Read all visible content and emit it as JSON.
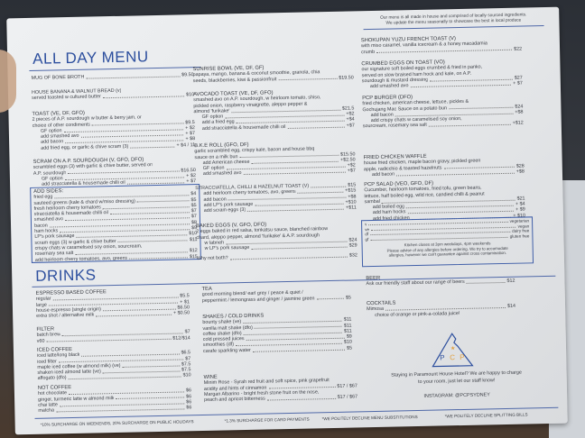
{
  "intro": [
    "Our menu is all made in house and comprised of locally sourced ingredients.",
    "We update the menu seasonally to showcase the best in local produce"
  ],
  "titles": {
    "menu": "ALL DAY MENU",
    "drinks": "DRINKS"
  },
  "sections": {
    "broth": {
      "lines": [
        {
          "t": "MUG OF BONE BROTH",
          "p": "$9.50"
        }
      ]
    },
    "bread": {
      "lines": [
        {
          "t": "HOUSE BANANA & WALNUT BREAD (v)"
        },
        {
          "t": "served toasted w cultured butter",
          "p": "$10"
        }
      ]
    },
    "toast": {
      "heading": "TOAST (ve, df, gfo)",
      "lines": [
        {
          "t": "2 pieces of A.P. sourdough w butter & berry jam, or"
        },
        {
          "t": "choice of other condiments",
          "p": "$9.5"
        },
        {
          "t": "GF option",
          "p": "+ $2",
          "i": 1
        },
        {
          "t": "add smashed avo",
          "p": "+ $7",
          "i": 1
        },
        {
          "t": "add bacon",
          "p": "+ $8",
          "i": 1
        },
        {
          "t": "add fried egg, or garlic & chive scram (3)",
          "p": "+ $4 / 11",
          "i": 1
        }
      ]
    },
    "scram": {
      "heading": "SCRAM ON A.P. SOURDOUGH (v, gfo, dfo)",
      "lines": [
        {
          "t": "scrambled eggs (3) with garlic & chive butter, served on"
        },
        {
          "t": "A.P. sourdough",
          "p": "$16.50"
        },
        {
          "t": "GF option",
          "p": "+ $2",
          "i": 1
        },
        {
          "t": "add stracciatella & housemade chilli oil",
          "p": "+ $7",
          "i": 1
        }
      ]
    },
    "sides": {
      "heading": "ADD SIDES:",
      "lines": [
        {
          "t": "fried egg",
          "p": "$4"
        },
        {
          "t": "sauteed greens (kale & chard w/miso dressing)",
          "p": "$5"
        },
        {
          "t": "fresh heirloom cherry tomatoes",
          "p": "$5"
        },
        {
          "t": "stracciatella & housemade chilli oil",
          "p": "$7"
        },
        {
          "t": "smashed avo",
          "p": "$7"
        },
        {
          "t": "bacon",
          "p": "$8"
        },
        {
          "t": "ham hocks",
          "p": "$9"
        },
        {
          "t": "LP's pork sausage",
          "p": "$10"
        },
        {
          "t": "scram eggs (3) w garlic & chive butter",
          "p": "$11"
        },
        {
          "t": "crispy chats w caramelised soy onion, sourcream,"
        },
        {
          "t": "rosemary sea salt",
          "p": "$12"
        },
        {
          "t": "add heirloom cherry tomatoes, avo, greens",
          "p": "$15"
        }
      ]
    },
    "sunrise": {
      "heading": "SUNRISE BOWL (ve, df, gf)",
      "lines": [
        {
          "t": "papaya, mango, banana & coconut smoothie, granola, chia"
        },
        {
          "t": "seeds, blackberries, kiwi & passionfruit",
          "p": "$19.50"
        }
      ]
    },
    "avo": {
      "heading": "AVOCADO TOAST (ve, df, gfo)",
      "lines": [
        {
          "t": "smashed avo on A.P. sourdough, w heirloom tomato, shiso,"
        },
        {
          "t": "pickled onion, raspberry vinaigrette, aleppo pepper &"
        },
        {
          "t": "almond 'furikake'",
          "p": "$21.5"
        },
        {
          "t": "GF option",
          "p": "+$2",
          "i": 1
        },
        {
          "t": "add a fried egg",
          "p": "+$4",
          "i": 1
        },
        {
          "t": "add stracciatella & housemade chilli oil",
          "p": "+$7",
          "i": 1
        }
      ]
    },
    "bke": {
      "heading": "B.K.E ROLL (gfo, df)",
      "lines": [
        {
          "t": "garlic scrambled egg, crispy kale, bacon and house bbq"
        },
        {
          "t": "sauce on a milk bun",
          "p": "$15.50"
        },
        {
          "t": "add American cheese",
          "p": "+$2.50",
          "i": 1
        },
        {
          "t": "GF option",
          "p": "+$2",
          "i": 1
        },
        {
          "t": "add smashed avo",
          "p": "+$7",
          "i": 1
        }
      ]
    },
    "strac": {
      "lines": [
        {
          "t": "STRACCIATELLA, CHILLI & HAZELNUT TOAST (V)",
          "p": "$15"
        },
        {
          "t": "add heirloom cherry tomatoes, avo, greens",
          "p": "+$15",
          "i": 1
        },
        {
          "t": "add bacon",
          "p": "+$8",
          "i": 1
        },
        {
          "t": "add LP's pork sausage",
          "p": "+$10",
          "i": 1
        },
        {
          "t": "add scram eggs (3)",
          "p": "+$11",
          "i": 1
        }
      ]
    },
    "baked": {
      "heading": "BAKED EGGS (v, gfo, dfo)",
      "lines": [
        {
          "t": "2 eggs baked in red salsa, tonkatsu sauce, blanched rainbow"
        },
        {
          "t": "chard, aleppo pepper, almond 'furikake' & A.P. sourdough"
        },
        {
          "t": "w labneh",
          "p": "$24",
          "i": 1
        },
        {
          "t": "w LP's pork sausage",
          "p": "$29",
          "i": 1
        }
      ]
    },
    "both": {
      "lines": [
        {
          "t": "Why not both?",
          "p": "$32"
        }
      ]
    },
    "shokupan": {
      "heading": "SHOKUPAN YUZU FRENCH TOAST (v)",
      "lines": [
        {
          "t": "with miso caramel, vanilla icecream & a honey macadamia"
        },
        {
          "t": "crumb",
          "p": "$22"
        }
      ]
    },
    "crumbed": {
      "heading": "CRUMBED EGGS ON TOAST (vo)",
      "lines": [
        {
          "t": "our signature soft boiled eggs crumbed & fried in panko,"
        },
        {
          "t": "served on slow braised ham hock and kale, on A.P."
        },
        {
          "t": "sourdough & mustard dressing",
          "p": "$27"
        },
        {
          "t": "add smashed avo",
          "p": "+ $7",
          "i": 1
        }
      ]
    },
    "burger": {
      "heading": "PCP BURGER (dfo)",
      "lines": [
        {
          "t": "fried chicken, american cheese, lettuce, pickles &"
        },
        {
          "t": "Gochujang Mac Sauce on a potato bun",
          "p": "$24"
        },
        {
          "t": "add bacon",
          "p": "+$8",
          "i": 1
        },
        {
          "t": "add crispy chats w caramelised soy onion,",
          "i": 1
        },
        {
          "t": "sourcream, rosemary sea salt",
          "p": "+$12"
        }
      ]
    },
    "waffle": {
      "heading": "FRIED CHICKEN WAFFLE",
      "lines": [
        {
          "t": "house fried chicken, maple bacon gravy, pickled green"
        },
        {
          "t": "apple, radicchio & toasted hazelnuts",
          "p": "$28"
        },
        {
          "t": "add bacon",
          "p": "+$8",
          "i": 1
        }
      ]
    },
    "salad": {
      "heading": "PCP SALAD (veo, gfo, df)",
      "lines": [
        {
          "t": "Cucumber, heirloom tomatoes, fried tofu, green beans,"
        },
        {
          "t": "lettuce, half boiled egg, wild rice, candied chilli & peanut"
        },
        {
          "t": "sambal",
          "p": "$21"
        },
        {
          "t": "add boiled egg",
          "p": "+ $4",
          "i": 1
        },
        {
          "t": "add ham hocks",
          "p": "+ $9",
          "i": 1
        },
        {
          "t": "add fried chicken",
          "p": "+ $10",
          "i": 1
        }
      ]
    },
    "legend": {
      "lines": [
        {
          "t": "v",
          "p": "vegetarian"
        },
        {
          "t": "ve",
          "p": "vegan"
        },
        {
          "t": "df",
          "p": "dairy free"
        },
        {
          "t": "gf",
          "p": "gluten free"
        }
      ]
    },
    "espresso": {
      "heading": "ESPRESSO BASED COFFEE",
      "lines": [
        {
          "t": "regular",
          "p": "$5.5"
        },
        {
          "t": "large",
          "p": "+ $1"
        },
        {
          "t": "house espresso (single origin)",
          "p": "$6.50"
        },
        {
          "t": "extra shot / alternative milk",
          "p": "+ $0.50"
        }
      ]
    },
    "filter": {
      "heading": "FILTER",
      "lines": [
        {
          "t": "batch brew",
          "p": "$7"
        },
        {
          "t": "v60",
          "p": "$12/$14"
        }
      ]
    },
    "iced": {
      "heading": "ICED COFFEE",
      "lines": [
        {
          "t": "iced latte/long black",
          "p": "$6.5"
        },
        {
          "t": "iced filter",
          "p": "$7"
        },
        {
          "t": "maple iced coffee (w almond milk) (ve)",
          "p": "$7.5"
        },
        {
          "t": "shaken iced almond latte (ve)",
          "p": "$7.5"
        },
        {
          "t": "affogato (dfo)",
          "p": "$10"
        }
      ]
    },
    "notcoffee": {
      "heading": "NOT COFFEE",
      "lines": [
        {
          "t": "hot chocolate",
          "p": "$6"
        },
        {
          "t": "ginger, turmeric latte w almond milk",
          "p": "$6"
        },
        {
          "t": "chai latte",
          "p": "$6"
        },
        {
          "t": "matcha",
          "p": "$6"
        }
      ]
    },
    "tea": {
      "heading": "TEA",
      "lines": [
        {
          "t": "good morning blend/ earl grey / peace & quiet /"
        },
        {
          "t": "peppermint / lemongrass and ginger / jasmine green",
          "p": "$5"
        }
      ]
    },
    "shakes": {
      "heading": "SHAKES / COLD DRINKS",
      "lines": [
        {
          "t": "bounty shake (ve)",
          "p": "$11"
        },
        {
          "t": "vanilla malt shake (dfo)",
          "p": "$11"
        },
        {
          "t": "coffee shake (dfo)",
          "p": "$11"
        },
        {
          "t": "cold pressed juices",
          "p": "$9"
        },
        {
          "t": "smoothies (df)",
          "p": "$10"
        },
        {
          "t": "carafe sparkling water",
          "p": "$5"
        }
      ]
    },
    "wine": {
      "heading": "WINE",
      "lines": [
        {
          "t": "Minim Rose - Syrah red fruit and soft spice, pink grapefruit"
        },
        {
          "t": "acidity and hints of cinnamon",
          "p": "$17 / $67"
        },
        {
          "t": "Margan Albarino - bright fresh stone fruit on the nose,"
        },
        {
          "t": "peach and apricot bitterness",
          "p": "$17 / $67"
        }
      ]
    },
    "beer": {
      "heading": "BEER",
      "lines": [
        {
          "t": "Ask our friendly staff about our range of beers",
          "p": "$12"
        }
      ]
    },
    "cocktails": {
      "heading": "COCKTAILS",
      "lines": [
        {
          "t": "Mimosa",
          "p": "$14"
        },
        {
          "t": "choice of orange or pink-a-colada juice!",
          "i": 1
        }
      ]
    }
  },
  "kitchen_note": [
    "Kitchen closes at 3pm weekdays, 4pm weekends",
    "Please advise of any allergies before ordering. We try to accomodate",
    "allergies, however we can't guarantee against cross contamination."
  ],
  "logo": {
    "letters": [
      "P",
      "C",
      "P"
    ],
    "navy": "#2d4f9e",
    "orange": "#e0a040"
  },
  "hotel": [
    "Staying in Paramount House Hotel? We are happy to charge",
    "to your room, just let our staff know!"
  ],
  "instagram": "INSTAGRAM: @PCPSYDNEY",
  "footer": [
    "*10% SURCHARGE ON WEEKENDS, 20% SURCHARGE ON PUBLIC HOLIDAYS",
    "*1.3% SURCHARGE FOR CARD PAYMENTS",
    "*WE POLITELY DECLINE MENU SUBSTITUTIONS",
    "*WE POLITELY DECLINE SPLITTING BILLS"
  ]
}
